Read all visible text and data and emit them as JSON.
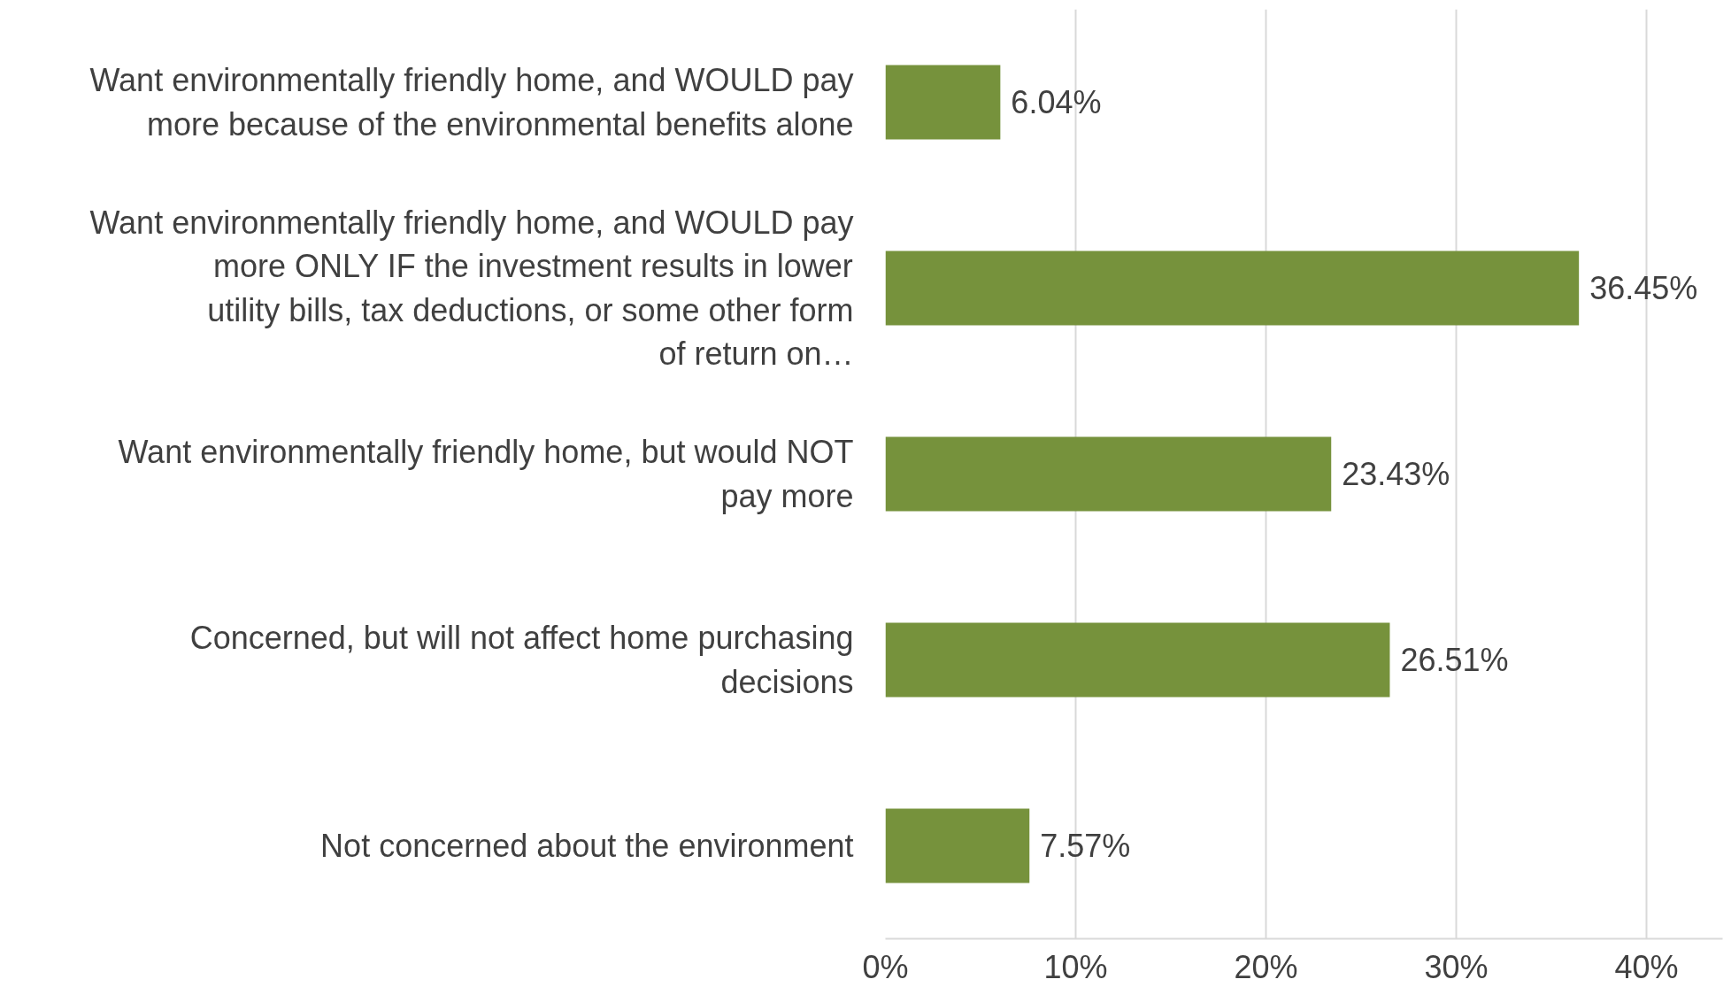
{
  "chart_data": {
    "type": "bar",
    "orientation": "horizontal",
    "categories": [
      "Want environmentally friendly home, and WOULD pay more because of the environmental benefits alone",
      "Want environmentally friendly home, and WOULD pay more ONLY IF the investment results in lower utility bills, tax deductions, or some other form of return on…",
      "Want environmentally friendly home, but would NOT pay more",
      "Concerned, but will not affect home purchasing decisions",
      "Not concerned about the environment"
    ],
    "values": [
      6.04,
      36.45,
      23.43,
      26.51,
      7.57
    ],
    "value_labels": [
      "6.04%",
      "36.45%",
      "23.43%",
      "26.51%",
      "7.57%"
    ],
    "color": "#76923c",
    "xlim": [
      0,
      44
    ],
    "xticks": [
      {
        "value": 0,
        "label": "0%"
      },
      {
        "value": 10,
        "label": "10%"
      },
      {
        "value": 20,
        "label": "20%"
      },
      {
        "value": 30,
        "label": "30%"
      },
      {
        "value": 40,
        "label": "40%"
      }
    ],
    "grid": "x"
  }
}
